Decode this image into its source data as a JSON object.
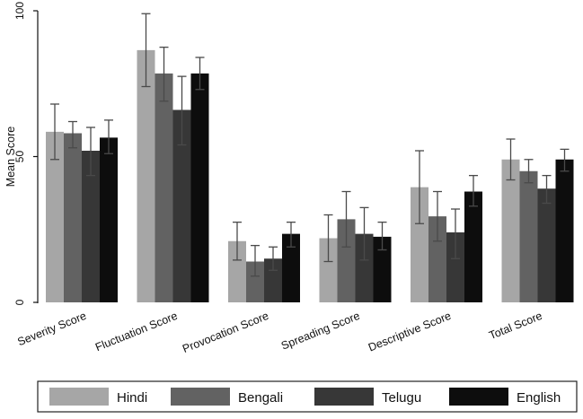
{
  "chart_data": {
    "type": "bar",
    "title": "",
    "xlabel": "",
    "ylabel": "Mean Score",
    "ylim": [
      0,
      100
    ],
    "yticks": [
      0,
      50,
      100
    ],
    "grid": false,
    "legend_position": "bottom",
    "categories": [
      "Severity Score",
      "Fluctuation Score",
      "Provocation Score",
      "Spreading Score",
      "Descriptive Score",
      "Total Score"
    ],
    "series": [
      {
        "name": "Hindi",
        "color": "#a6a6a6",
        "values": [
          58.5,
          86.5,
          21,
          22,
          39.5,
          49
        ],
        "error_low": [
          49,
          74,
          14.5,
          14,
          27,
          42
        ],
        "error_high": [
          68,
          99,
          27.5,
          30,
          52,
          56
        ]
      },
      {
        "name": "Bengali",
        "color": "#626262",
        "values": [
          58,
          78.5,
          14,
          28.5,
          29.5,
          45
        ],
        "error_low": [
          53,
          69,
          9,
          19,
          21,
          41
        ],
        "error_high": [
          62,
          87.5,
          19.5,
          38,
          38,
          49
        ]
      },
      {
        "name": "Telugu",
        "color": "#373737",
        "values": [
          52,
          66,
          15,
          23.5,
          24,
          39
        ],
        "error_low": [
          43.5,
          54,
          11,
          14.5,
          15,
          34
        ],
        "error_high": [
          60,
          77.5,
          19,
          32.5,
          32,
          43.5
        ]
      },
      {
        "name": "English",
        "color": "#0d0d0d",
        "values": [
          56.5,
          78.5,
          23.5,
          22.5,
          38,
          49
        ],
        "error_low": [
          51,
          73,
          19,
          18,
          33,
          45
        ],
        "error_high": [
          62.5,
          84,
          27.5,
          27.5,
          43.5,
          52.5
        ]
      }
    ]
  }
}
